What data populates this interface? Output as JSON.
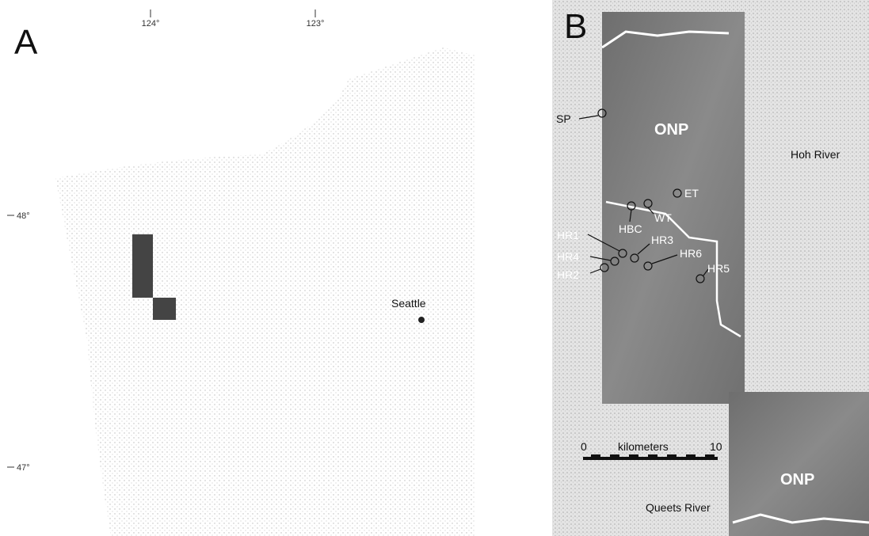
{
  "panels": [
    {
      "label": "A",
      "longitude_ticks": [
        "124°",
        "123°"
      ],
      "latitude_ticks": [
        "48°",
        "47°"
      ],
      "city": "Seattle"
    },
    {
      "label": "B",
      "regions": [
        "ONP",
        "Hoh River",
        "ONP",
        "Queets River"
      ],
      "sites": [
        "SP",
        "ET",
        "HBC",
        "WT",
        "HR1",
        "HR3",
        "HR4",
        "HR6",
        "HR2",
        "HR5"
      ],
      "scale_bar": {
        "start": "0",
        "unit": "kilometers",
        "end": "10"
      }
    }
  ]
}
